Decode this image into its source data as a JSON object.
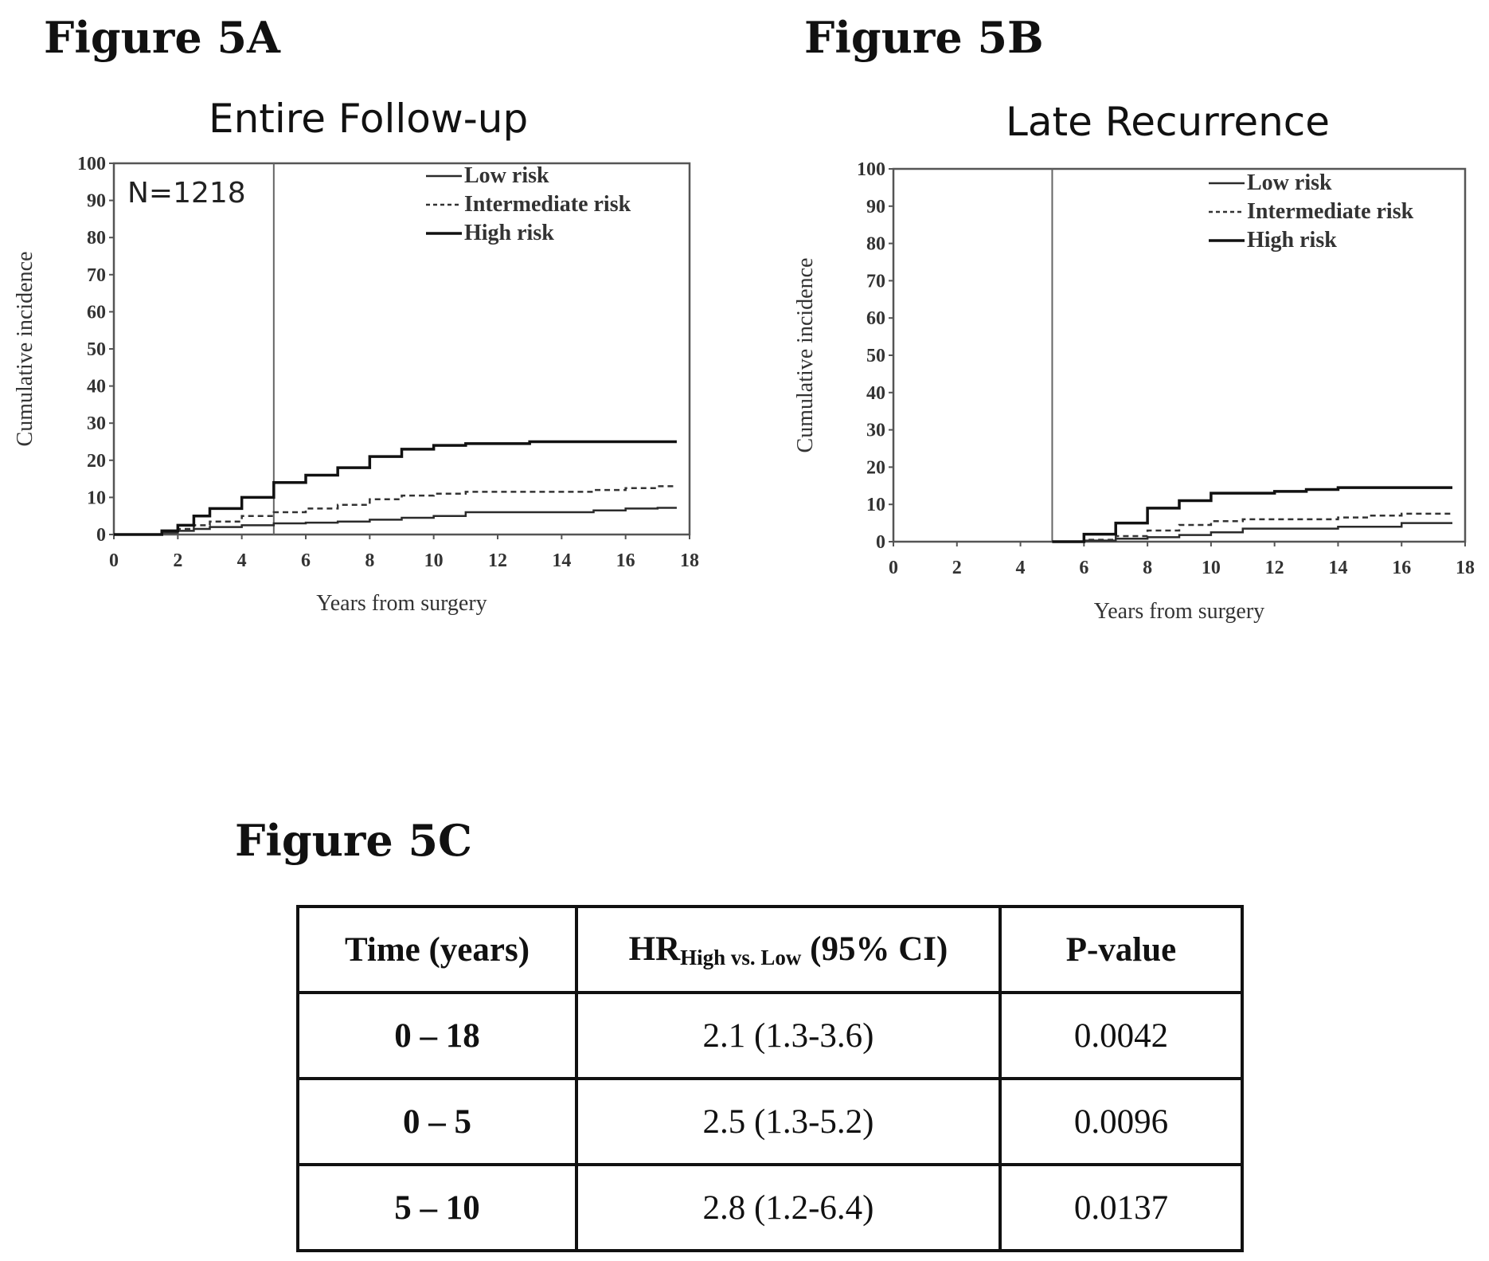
{
  "figures": {
    "a_label": "Figure 5A",
    "b_label": "Figure 5B",
    "c_label": "Figure 5C"
  },
  "chart_data": [
    {
      "type": "line",
      "title": "Entire Follow-up",
      "annotation": "N=1218",
      "xlabel": "Years from surgery",
      "ylabel": "Cumulative incidence",
      "xlim": [
        0,
        18
      ],
      "ylim": [
        0,
        100
      ],
      "xticks": [
        "0",
        "2",
        "4",
        "6",
        "8",
        "10",
        "12",
        "14",
        "16",
        "18"
      ],
      "yticks": [
        "0",
        "10",
        "20",
        "30",
        "40",
        "50",
        "60",
        "70",
        "80",
        "90",
        "100"
      ],
      "vline_x": 5,
      "grid": false,
      "legend_position": "top-right",
      "series": [
        {
          "name": "Low risk",
          "style": "solid",
          "x": [
            0,
            1,
            1.5,
            2,
            2.5,
            3,
            4,
            5,
            6,
            7,
            8,
            9,
            10,
            11,
            12,
            13,
            14,
            15,
            16,
            17,
            17.6
          ],
          "y": [
            0,
            0,
            0.5,
            1,
            1.5,
            2,
            2.5,
            3,
            3.2,
            3.5,
            4,
            4.5,
            5,
            6,
            6,
            6,
            6,
            6.5,
            7,
            7.2,
            7.2
          ]
        },
        {
          "name": "Intermediate risk",
          "style": "dashed",
          "x": [
            0,
            1,
            1.5,
            2,
            2.5,
            3,
            4,
            5,
            6,
            7,
            8,
            9,
            10,
            11,
            12,
            13,
            14,
            15,
            16,
            17,
            17.6
          ],
          "y": [
            0,
            0,
            0.5,
            1.5,
            2.5,
            3.5,
            5,
            6,
            7,
            8,
            9.5,
            10.5,
            11,
            11.5,
            11.5,
            11.5,
            11.5,
            12,
            12.5,
            13,
            13
          ]
        },
        {
          "name": "High risk",
          "style": "solid-dark",
          "x": [
            0,
            1,
            1.5,
            2,
            2.5,
            3,
            4,
            5,
            6,
            7,
            8,
            9,
            10,
            11,
            12,
            13,
            14,
            15,
            16,
            17,
            17.6
          ],
          "y": [
            0,
            0,
            1,
            2.5,
            5,
            7,
            10,
            14,
            16,
            18,
            21,
            23,
            24,
            24.5,
            24.5,
            25,
            25,
            25,
            25,
            25,
            25
          ]
        }
      ]
    },
    {
      "type": "line",
      "title": "Late Recurrence",
      "xlabel": "Years from surgery",
      "ylabel": "Cumulative incidence",
      "xlim": [
        0,
        18
      ],
      "ylim": [
        0,
        100
      ],
      "xticks": [
        "0",
        "2",
        "4",
        "6",
        "8",
        "10",
        "12",
        "14",
        "16",
        "18"
      ],
      "yticks": [
        "0",
        "10",
        "20",
        "30",
        "40",
        "50",
        "60",
        "70",
        "80",
        "90",
        "100"
      ],
      "vline_x": 5,
      "grid": false,
      "legend_position": "top-right",
      "series": [
        {
          "name": "Low risk",
          "style": "solid",
          "x": [
            5,
            6,
            7,
            8,
            9,
            10,
            11,
            12,
            13,
            14,
            15,
            16,
            17,
            17.6
          ],
          "y": [
            0,
            0.3,
            0.8,
            1.2,
            1.8,
            2.5,
            3.5,
            3.5,
            3.5,
            4,
            4,
            5,
            5,
            5
          ]
        },
        {
          "name": "Intermediate risk",
          "style": "dashed",
          "x": [
            5,
            6,
            7,
            8,
            9,
            10,
            11,
            12,
            13,
            14,
            15,
            16,
            17,
            17.6
          ],
          "y": [
            0,
            0.5,
            1.5,
            3,
            4.5,
            5.5,
            6,
            6,
            6,
            6.5,
            7,
            7.5,
            7.5,
            7.5
          ]
        },
        {
          "name": "High risk",
          "style": "solid-dark",
          "x": [
            5,
            6,
            7,
            8,
            9,
            10,
            11,
            12,
            13,
            14,
            15,
            16,
            17,
            17.6
          ],
          "y": [
            0,
            2,
            5,
            9,
            11,
            13,
            13,
            13.5,
            14,
            14.5,
            14.5,
            14.5,
            14.5,
            14.5
          ]
        }
      ]
    }
  ],
  "table": {
    "headers": {
      "time": "Time (years)",
      "hr_main": "HR",
      "hr_sub": "High vs. Low",
      "hr_ci": " (95% CI)",
      "p": "P-value"
    },
    "rows": [
      {
        "time": "0 – 18",
        "hr": "2.1 (1.3-3.6)",
        "p": "0.0042"
      },
      {
        "time": "0 – 5",
        "hr": "2.5 (1.3-5.2)",
        "p": "0.0096"
      },
      {
        "time": "5 – 10",
        "hr": "2.8 (1.2-6.4)",
        "p": "0.0137"
      }
    ]
  },
  "colors": {
    "low": "#2b2b2b",
    "intermediate": "#333333",
    "high": "#111111",
    "frame": "#555555"
  }
}
